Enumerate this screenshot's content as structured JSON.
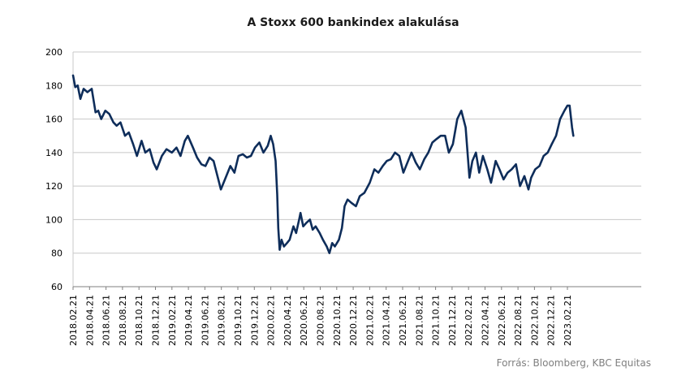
{
  "chart_data": {
    "type": "line",
    "title": "A Stoxx 600 bankindex alakulása",
    "xlabel": "",
    "ylabel": "",
    "ylim": [
      60,
      200
    ],
    "yticks": [
      60,
      80,
      100,
      120,
      140,
      160,
      180,
      200
    ],
    "grid": true,
    "legend": "none",
    "x_tick_labels": [
      "2018.02.21",
      "2018.04.21",
      "2018.06.21",
      "2018.08.21",
      "2018.10.21",
      "2018.12.21",
      "2019.02.21",
      "2019.04.21",
      "2019.06.21",
      "2019.08.21",
      "2019.10.21",
      "2019.12.21",
      "2020.02.21",
      "2020.04.21",
      "2020.06.21",
      "2020.08.21",
      "2020.10.21",
      "2020.12.21",
      "2021.02.21",
      "2021.04.21",
      "2021.06.21",
      "2021.08.21",
      "2021.10.21",
      "2021.12.21",
      "2022.02.21",
      "2022.04.21",
      "2022.06.21",
      "2022.08.21",
      "2022.10.21",
      "2022.12.21",
      "2023.02.21"
    ],
    "series": [
      {
        "color": "#0e2d5a",
        "x": [
          "2018-02-21",
          "2018-03-01",
          "2018-03-10",
          "2018-03-20",
          "2018-04-01",
          "2018-04-15",
          "2018-05-01",
          "2018-05-15",
          "2018-05-25",
          "2018-06-05",
          "2018-06-20",
          "2018-07-05",
          "2018-07-20",
          "2018-08-01",
          "2018-08-15",
          "2018-09-01",
          "2018-09-15",
          "2018-10-01",
          "2018-10-15",
          "2018-11-01",
          "2018-11-15",
          "2018-12-01",
          "2018-12-15",
          "2018-12-27",
          "2019-01-15",
          "2019-02-01",
          "2019-02-21",
          "2019-03-10",
          "2019-03-25",
          "2019-04-10",
          "2019-04-21",
          "2019-05-10",
          "2019-05-25",
          "2019-06-10",
          "2019-06-25",
          "2019-07-10",
          "2019-07-25",
          "2019-08-10",
          "2019-08-21",
          "2019-09-10",
          "2019-09-25",
          "2019-10-10",
          "2019-10-25",
          "2019-11-10",
          "2019-11-25",
          "2019-12-10",
          "2019-12-25",
          "2020-01-10",
          "2020-01-25",
          "2020-02-10",
          "2020-02-21",
          "2020-03-01",
          "2020-03-10",
          "2020-03-16",
          "2020-03-20",
          "2020-03-25",
          "2020-04-01",
          "2020-04-10",
          "2020-04-21",
          "2020-05-01",
          "2020-05-15",
          "2020-05-25",
          "2020-06-05",
          "2020-06-10",
          "2020-06-20",
          "2020-07-01",
          "2020-07-15",
          "2020-07-25",
          "2020-08-05",
          "2020-08-20",
          "2020-09-01",
          "2020-09-15",
          "2020-09-25",
          "2020-10-05",
          "2020-10-15",
          "2020-10-30",
          "2020-11-10",
          "2020-11-20",
          "2020-12-01",
          "2020-12-15",
          "2021-01-01",
          "2021-01-15",
          "2021-02-01",
          "2021-02-21",
          "2021-03-10",
          "2021-03-25",
          "2021-04-10",
          "2021-04-25",
          "2021-05-10",
          "2021-05-25",
          "2021-06-10",
          "2021-06-25",
          "2021-07-10",
          "2021-07-25",
          "2021-08-10",
          "2021-08-25",
          "2021-09-10",
          "2021-09-25",
          "2021-10-10",
          "2021-10-25",
          "2021-11-10",
          "2021-11-26",
          "2021-12-10",
          "2021-12-25",
          "2022-01-10",
          "2022-01-25",
          "2022-02-10",
          "2022-02-24",
          "2022-03-07",
          "2022-03-20",
          "2022-04-01",
          "2022-04-15",
          "2022-05-01",
          "2022-05-15",
          "2022-06-01",
          "2022-06-15",
          "2022-06-30",
          "2022-07-15",
          "2022-07-30",
          "2022-08-15",
          "2022-08-30",
          "2022-09-15",
          "2022-09-30",
          "2022-10-10",
          "2022-10-25",
          "2022-11-10",
          "2022-11-25",
          "2022-12-10",
          "2022-12-25",
          "2023-01-10",
          "2023-01-25",
          "2023-02-10",
          "2023-02-21",
          "2023-03-01",
          "2023-03-10",
          "2023-03-15"
        ],
        "y": [
          186,
          179,
          180,
          172,
          178,
          176,
          178,
          164,
          165,
          160,
          165,
          163,
          158,
          156,
          158,
          150,
          152,
          145,
          138,
          147,
          140,
          142,
          134,
          130,
          138,
          142,
          140,
          143,
          138,
          147,
          150,
          143,
          137,
          133,
          132,
          137,
          135,
          125,
          118,
          126,
          132,
          128,
          138,
          139,
          137,
          138,
          143,
          146,
          140,
          144,
          150,
          145,
          135,
          115,
          95,
          82,
          88,
          84,
          86,
          88,
          96,
          92,
          100,
          104,
          96,
          98,
          100,
          94,
          96,
          92,
          88,
          84,
          80,
          86,
          84,
          88,
          95,
          108,
          112,
          110,
          108,
          114,
          116,
          122,
          130,
          128,
          132,
          135,
          136,
          140,
          138,
          128,
          134,
          140,
          134,
          130,
          136,
          140,
          146,
          148,
          150,
          150,
          140,
          145,
          160,
          165,
          155,
          125,
          135,
          140,
          128,
          138,
          130,
          122,
          135,
          130,
          124,
          128,
          130,
          133,
          120,
          126,
          118,
          125,
          130,
          132,
          138,
          140,
          145,
          150,
          160,
          165,
          168,
          168,
          155,
          150
        ]
      }
    ]
  },
  "source_note": "Forrás: Bloomberg,  KBC Equitas"
}
